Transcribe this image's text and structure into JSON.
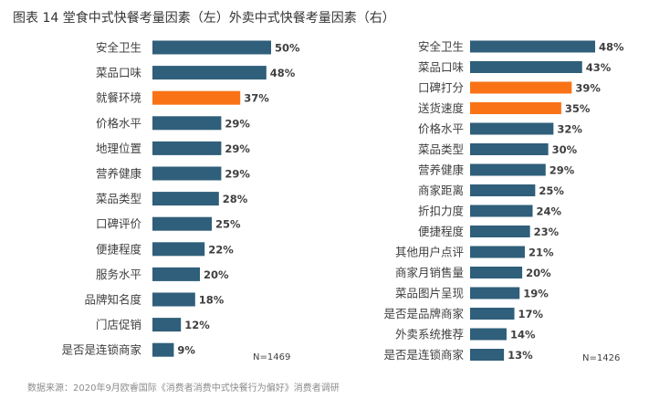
{
  "title": "图表 14 堂食中式快餐考量因素（左）外卖中式快餐考量因素（右）",
  "source": "数据来源：2020年9月欧睿国际《消费者消费中式快餐行为偏好》消费者调研",
  "colors": {
    "bar": "#2F5F7A",
    "highlight": "#F97316"
  },
  "chart_data": [
    {
      "type": "bar",
      "orientation": "horizontal",
      "note": "N=1469",
      "unit": "%",
      "categories": [
        "安全卫生",
        "菜品口味",
        "就餐环境",
        "价格水平",
        "地理位置",
        "营养健康",
        "菜品类型",
        "口碑评价",
        "便捷程度",
        "服务水平",
        "品牌知名度",
        "门店促销",
        "是否是连锁商家"
      ],
      "values": [
        50,
        48,
        37,
        29,
        29,
        29,
        28,
        25,
        22,
        20,
        18,
        12,
        9
      ],
      "highlighted": [
        2
      ],
      "value_labels": [
        "50%",
        "48%",
        "37%",
        "29%",
        "29%",
        "29%",
        "28%",
        "25%",
        "22%",
        "20%",
        "18%",
        "12%",
        "9%"
      ],
      "xlim": [
        0,
        50
      ]
    },
    {
      "type": "bar",
      "orientation": "horizontal",
      "note": "N=1426",
      "unit": "%",
      "categories": [
        "安全卫生",
        "菜品口味",
        "口碑打分",
        "送货速度",
        "价格水平",
        "菜品类型",
        "营养健康",
        "商家距离",
        "折扣力度",
        "便捷程度",
        "其他用户点评",
        "商家月销售量",
        "菜品图片呈现",
        "是否是品牌商家",
        "外卖系统推荐",
        "是否是连锁商家"
      ],
      "values": [
        48,
        43,
        39,
        35,
        32,
        30,
        29,
        25,
        24,
        23,
        21,
        20,
        19,
        17,
        14,
        13
      ],
      "highlighted": [
        2,
        3
      ],
      "value_labels": [
        "48%",
        "43%",
        "39%",
        "35%",
        "32%",
        "30%",
        "29%",
        "25%",
        "24%",
        "23%",
        "21%",
        "20%",
        "19%",
        "17%",
        "14%",
        "13%"
      ],
      "xlim": [
        0,
        48
      ]
    }
  ]
}
